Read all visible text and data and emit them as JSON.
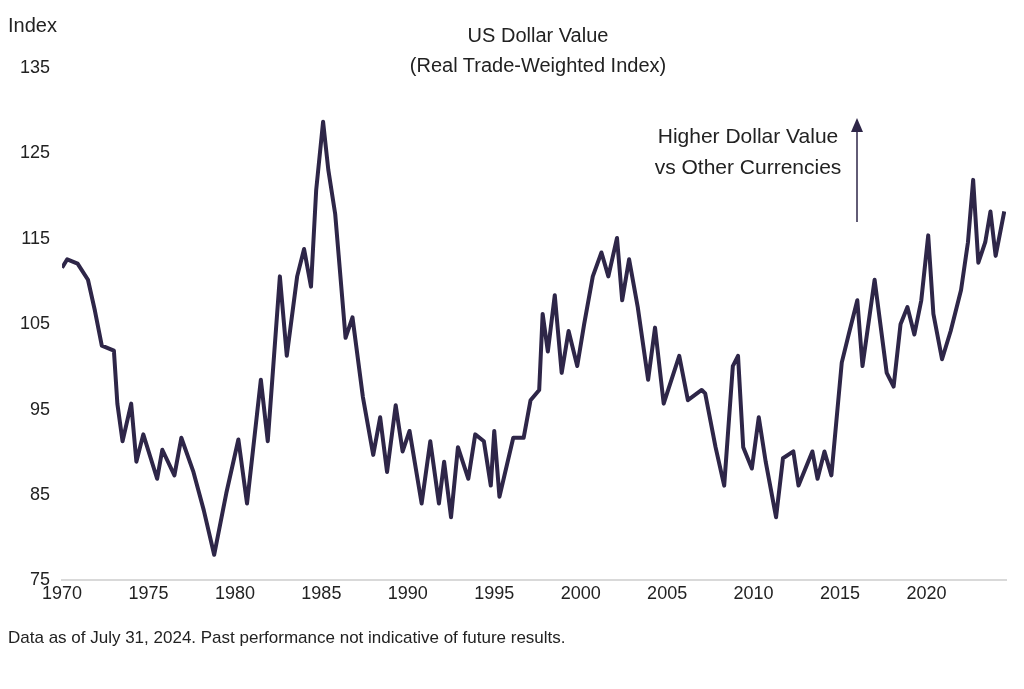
{
  "chart_data": {
    "type": "line",
    "title": "US Dollar Value",
    "subtitle": "(Real Trade-Weighted Index)",
    "ylabel": "Index",
    "annotations": [
      "Higher Dollar Value vs Other Currencies",
      "Data as of July 31, 2024. Past performance not indicative of future results."
    ],
    "xlim": [
      1970,
      2024.6
    ],
    "xticks": [
      1970,
      1975,
      1980,
      1985,
      1990,
      1995,
      2000,
      2005,
      2010,
      2015,
      2020
    ],
    "ylim": [
      75,
      135
    ],
    "yticks": [
      75,
      85,
      95,
      105,
      115,
      125,
      135
    ],
    "color": "#2e2648",
    "x": [
      1970.0,
      1970.3,
      1970.9,
      1971.5,
      1971.9,
      1972.3,
      1973.0,
      1973.2,
      1973.5,
      1974.0,
      1974.3,
      1974.7,
      1975.5,
      1975.8,
      1976.5,
      1976.9,
      1977.6,
      1978.2,
      1978.8,
      1979.5,
      1980.2,
      1980.7,
      1981.5,
      1981.9,
      1982.6,
      1983.0,
      1983.6,
      1984.0,
      1984.4,
      1984.7,
      1985.1,
      1985.4,
      1985.8,
      1986.4,
      1986.8,
      1987.4,
      1988.0,
      1988.4,
      1988.8,
      1989.3,
      1989.7,
      1990.1,
      1990.8,
      1991.3,
      1991.8,
      1992.1,
      1992.5,
      1992.9,
      1993.5,
      1993.9,
      1994.4,
      1994.8,
      1995.0,
      1995.3,
      1996.1,
      1996.7,
      1997.1,
      1997.6,
      1997.8,
      1998.1,
      1998.5,
      1998.9,
      1999.3,
      1999.8,
      2000.2,
      2000.7,
      2001.2,
      2001.6,
      2002.1,
      2002.4,
      2002.8,
      2003.3,
      2003.9,
      2004.3,
      2004.8,
      2005.7,
      2006.2,
      2007.0,
      2007.2,
      2007.8,
      2008.3,
      2008.8,
      2009.1,
      2009.4,
      2009.9,
      2010.3,
      2010.7,
      2011.3,
      2011.7,
      2012.3,
      2012.6,
      2013.4,
      2013.7,
      2014.1,
      2014.5,
      2015.1,
      2015.5,
      2016.0,
      2016.3,
      2017.0,
      2017.7,
      2018.1,
      2018.5,
      2018.9,
      2019.3,
      2019.7,
      2020.1,
      2020.4,
      2020.9,
      2021.4,
      2022.0,
      2022.4,
      2022.7,
      2023.0,
      2023.4,
      2023.7,
      2024.0,
      2024.5
    ],
    "values": [
      111.6,
      112.6,
      112.1,
      110.2,
      106.6,
      102.5,
      101.9,
      95.7,
      91.3,
      95.7,
      88.9,
      92.1,
      86.9,
      90.3,
      87.3,
      91.7,
      87.7,
      83.2,
      78.0,
      85.2,
      91.5,
      84.0,
      98.5,
      91.3,
      110.6,
      101.3,
      110.6,
      113.8,
      109.4,
      120.7,
      128.7,
      123.1,
      117.9,
      103.4,
      105.8,
      96.5,
      89.7,
      94.1,
      87.7,
      95.5,
      90.1,
      92.5,
      84.0,
      91.3,
      84.0,
      88.9,
      82.4,
      90.6,
      86.9,
      92.1,
      91.3,
      86.1,
      92.5,
      84.8,
      91.7,
      91.7,
      96.1,
      97.3,
      106.2,
      101.8,
      108.4,
      99.3,
      104.2,
      100.1,
      105.0,
      110.6,
      113.4,
      110.6,
      115.1,
      107.8,
      112.6,
      107.0,
      98.5,
      104.6,
      95.7,
      101.3,
      96.1,
      97.3,
      96.9,
      90.6,
      86.1,
      100.1,
      101.3,
      90.6,
      88.1,
      94.1,
      88.9,
      82.4,
      89.3,
      90.1,
      86.1,
      90.1,
      86.9,
      90.1,
      87.3,
      100.5,
      103.8,
      107.8,
      100.1,
      110.2,
      99.3,
      97.7,
      105.0,
      107.0,
      103.8,
      107.8,
      115.4,
      106.2,
      100.9,
      104.2,
      109.0,
      114.6,
      121.9,
      112.2,
      114.6,
      118.2,
      113.0,
      118.2
    ]
  }
}
